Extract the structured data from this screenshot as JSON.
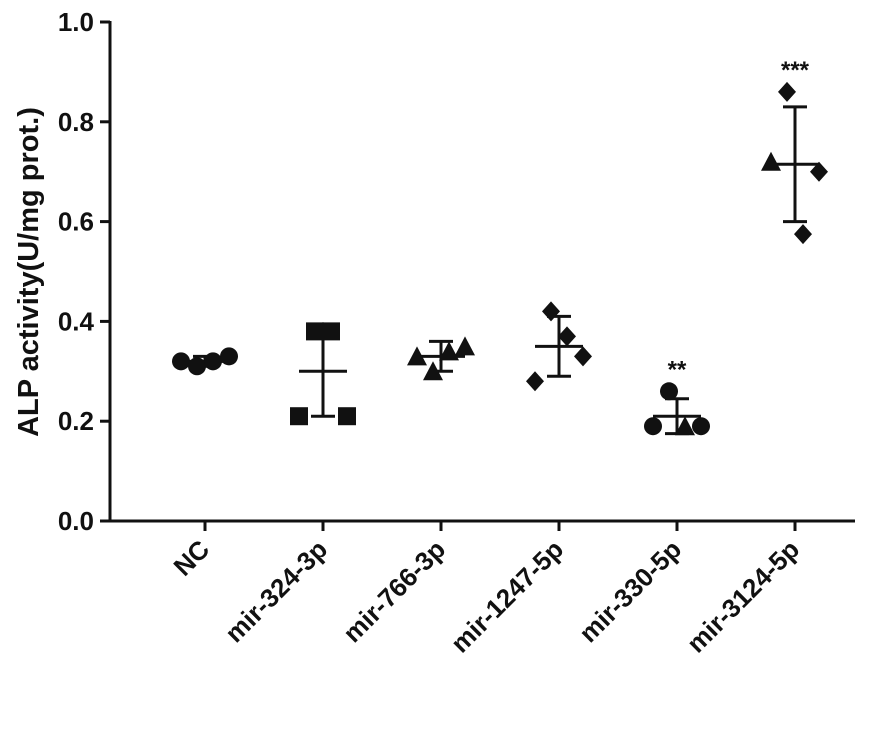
{
  "chart_data": {
    "type": "dotplot",
    "ylabel": "ALP activity(U/mg prot.)",
    "ylim": [
      0,
      1
    ],
    "yticks": [
      {
        "value": 0,
        "label": "0.0"
      },
      0.2,
      0.4,
      0.6,
      0.8,
      {
        "value": 1,
        "label": "1.0"
      }
    ],
    "categories": [
      "NC",
      "mir-324-3p",
      "mir-766-3p",
      "mir-1247-5p",
      "mir-330-5p",
      "mir-3124-5p"
    ],
    "color": "#111111",
    "groups": [
      {
        "values": [
          0.32,
          0.31,
          0.32,
          0.33
        ],
        "markers": [
          "circle",
          "circle",
          "circle",
          "circle"
        ],
        "mean": 0.32,
        "sd": 0.01
      },
      {
        "values": [
          0.21,
          0.38,
          0.38,
          0.21
        ],
        "markers": [
          "square",
          "square",
          "square",
          "square"
        ],
        "mean": 0.3,
        "sd": 0.09
      },
      {
        "values": [
          0.33,
          0.3,
          0.34,
          0.35
        ],
        "markers": [
          "triangle",
          "triangle",
          "triangle",
          "triangle"
        ],
        "mean": 0.33,
        "sd": 0.03
      },
      {
        "values": [
          0.28,
          0.42,
          0.37,
          0.33
        ],
        "markers": [
          "diamond",
          "diamond",
          "diamond",
          "diamond"
        ],
        "mean": 0.35,
        "sd": 0.06
      },
      {
        "values": [
          0.19,
          0.26,
          0.19,
          0.19
        ],
        "markers": [
          "circle",
          "circle",
          "triangle",
          "circle"
        ],
        "mean": 0.21,
        "sd": 0.035,
        "significance": "**"
      },
      {
        "values": [
          0.72,
          0.86,
          0.575,
          0.7
        ],
        "markers": [
          "triangle",
          "diamond",
          "diamond",
          "diamond"
        ],
        "mean": 0.715,
        "sd": 0.115,
        "significance": "***"
      }
    ]
  }
}
